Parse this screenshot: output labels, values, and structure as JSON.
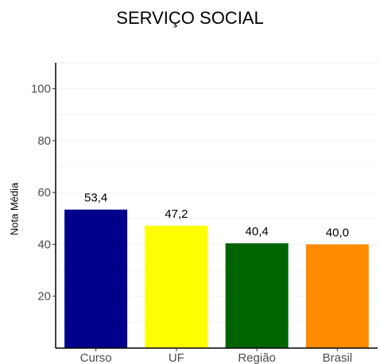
{
  "chart_data": {
    "type": "bar",
    "title": "SERVIÇO SOCIAL",
    "xlabel": "",
    "ylabel": "Nota Média",
    "categories": [
      "Curso",
      "UF",
      "Região",
      "Brasil"
    ],
    "values": [
      53.4,
      47.2,
      40.4,
      40.0
    ],
    "value_labels": [
      "53,4",
      "47,2",
      "40,4",
      "40,0"
    ],
    "colors": [
      "#00008b",
      "#ffff00",
      "#006400",
      "#ff8c00"
    ],
    "ylim": [
      0,
      110
    ],
    "yticks": [
      20,
      40,
      60,
      80,
      100
    ],
    "ytick_labels": [
      "20",
      "40",
      "60",
      "80",
      "100"
    ],
    "grid": "horizontal, faint",
    "legend": "none"
  }
}
